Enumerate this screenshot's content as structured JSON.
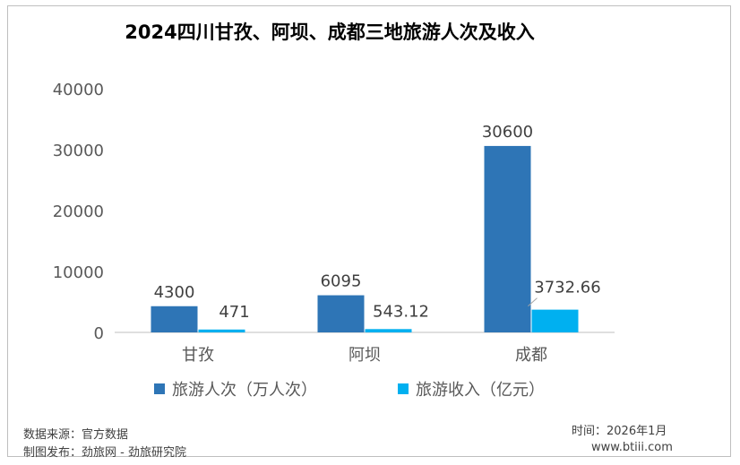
{
  "chart_data": {
    "type": "bar",
    "title": "2024四川甘孜、阿坝、成都三地旅游人次及收入",
    "categories": [
      "甘孜",
      "阿坝",
      "成都"
    ],
    "series": [
      {
        "name": "旅游人次（万人次）",
        "values": [
          4300,
          6095,
          30600
        ],
        "labels": [
          "4300",
          "6095",
          "30600"
        ],
        "color": "#2e75b6"
      },
      {
        "name": "旅游收入（亿元）",
        "values": [
          471,
          543.12,
          3732.66
        ],
        "labels": [
          "471",
          "543.12",
          "3732.66"
        ],
        "color": "#00b0f0"
      }
    ],
    "ylim": [
      0,
      40000
    ],
    "yticks": [
      "0",
      "10000",
      "20000",
      "30000",
      "40000"
    ],
    "grid": false,
    "legend": "bottom"
  },
  "footer": {
    "source": "数据来源：官方数据",
    "publisher": "制图发布：劲旅网 - 劲旅研究院",
    "time": "时间：2026年1月",
    "site": "www.btiii.com"
  }
}
